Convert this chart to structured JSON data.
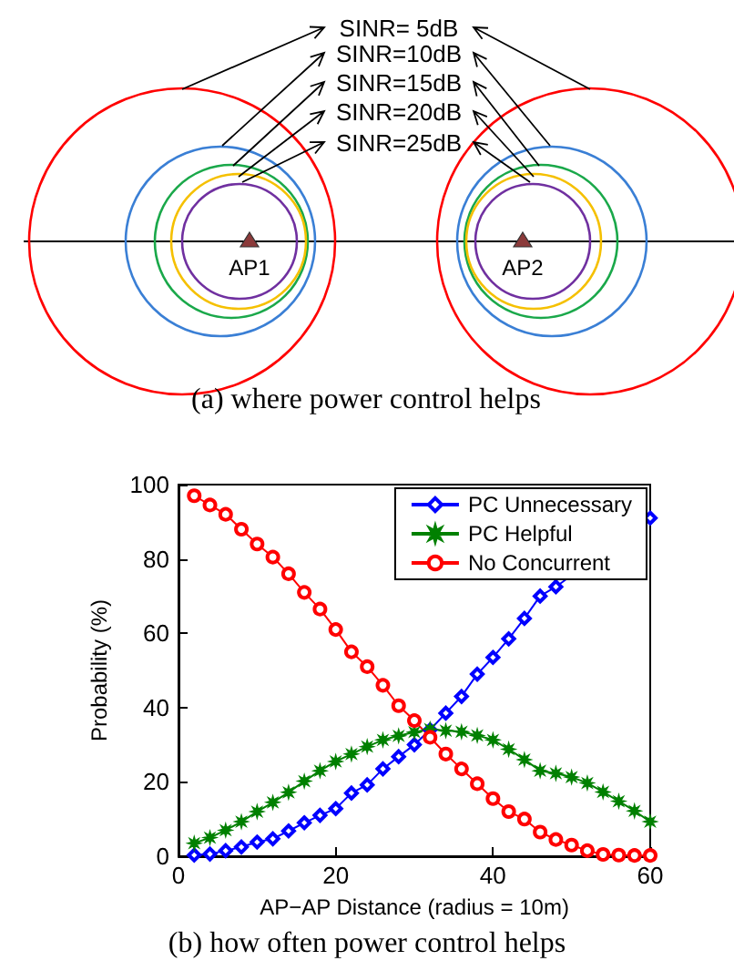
{
  "chart_data": [
    {
      "type": "other",
      "title": "(a) where power control helps",
      "annotations": [
        "SINR= 5dB",
        "SINR=10dB",
        "SINR=15dB",
        "SINR=20dB",
        "SINR=25dB",
        "AP1",
        "AP2"
      ]
    },
    {
      "type": "line",
      "title": "(b) how often power control helps",
      "xlabel": "AP−AP Distance (radius = 10m)",
      "ylabel": "Probability (%)",
      "x": [
        2,
        4,
        6,
        8,
        10,
        12,
        14,
        16,
        18,
        20,
        22,
        24,
        26,
        28,
        30,
        32,
        34,
        36,
        38,
        40,
        42,
        44,
        46,
        48,
        50,
        52,
        54,
        56,
        58,
        60
      ],
      "series": [
        {
          "name": "PC Unnecessary",
          "color": "#0000ff",
          "marker": "diamond",
          "values": [
            0.3,
            0.6,
            1.5,
            2.5,
            3.8,
            4.7,
            6.8,
            9,
            11,
            12.8,
            17,
            19.2,
            23.5,
            26.8,
            30,
            34,
            38.5,
            43,
            49,
            53.5,
            58.5,
            64,
            70,
            72.5,
            null,
            null,
            null,
            null,
            null,
            91
          ]
        },
        {
          "name": "PC Helpful",
          "color": "#008000",
          "marker": "star",
          "values": [
            3.5,
            5,
            7,
            9.3,
            12,
            14.5,
            17.2,
            20.2,
            23,
            25.5,
            27.5,
            29.5,
            31.3,
            32.4,
            33.4,
            34.2,
            33.8,
            33.5,
            32.5,
            31.3,
            28.8,
            26,
            23,
            22.3,
            21.3,
            19.7,
            17.3,
            14.8,
            12.2,
            9.3
          ]
        },
        {
          "name": "No Concurrent",
          "color": "#ff0000",
          "marker": "circle",
          "values": [
            97,
            94.5,
            92,
            88,
            84,
            80.5,
            76,
            71,
            66.5,
            61,
            55,
            51,
            46,
            40.5,
            36.5,
            32,
            27.5,
            23.5,
            19.5,
            15.5,
            12,
            10,
            6.5,
            4.5,
            3,
            1.5,
            0.5,
            0.3,
            0.2,
            0.2
          ]
        }
      ],
      "xlim": [
        0,
        60
      ],
      "xticks": [
        0,
        20,
        40,
        60
      ],
      "ylim": [
        0,
        100
      ],
      "yticks": [
        0,
        20,
        40,
        60,
        80,
        100
      ],
      "grid": false,
      "legend": "top right",
      "line_style": "solid"
    }
  ]
}
